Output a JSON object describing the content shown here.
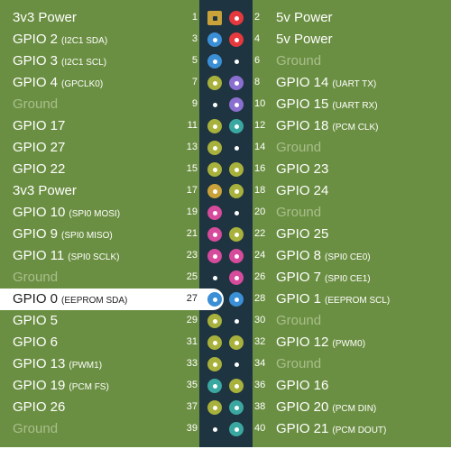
{
  "colors": {
    "board_green": "#6b8f42",
    "header_strip": "#1e3440",
    "power_3v3": "#c9a23a",
    "power_5v": "#e5393d",
    "ground": "#1e3440",
    "i2c": "#3b8fd6",
    "gpio": "#a8b13b",
    "uart": "#8b6fd0",
    "pcm": "#3aa8a0",
    "spi": "#d64b9b",
    "eeprom": "#3b8fd6"
  },
  "pins": [
    {
      "n": "1",
      "name": "3v3 Power",
      "sub": "",
      "type": "power_3v3"
    },
    {
      "n": "2",
      "name": "5v Power",
      "sub": "",
      "type": "power_5v"
    },
    {
      "n": "3",
      "name": "GPIO 2",
      "sub": "(I2C1 SDA)",
      "type": "i2c"
    },
    {
      "n": "4",
      "name": "5v Power",
      "sub": "",
      "type": "power_5v"
    },
    {
      "n": "5",
      "name": "GPIO 3",
      "sub": "(I2C1 SCL)",
      "type": "i2c"
    },
    {
      "n": "6",
      "name": "Ground",
      "sub": "",
      "type": "ground"
    },
    {
      "n": "7",
      "name": "GPIO 4",
      "sub": "(GPCLK0)",
      "type": "gpio"
    },
    {
      "n": "8",
      "name": "GPIO 14",
      "sub": "(UART TX)",
      "type": "uart"
    },
    {
      "n": "9",
      "name": "Ground",
      "sub": "",
      "type": "ground"
    },
    {
      "n": "10",
      "name": "GPIO 15",
      "sub": "(UART RX)",
      "type": "uart"
    },
    {
      "n": "11",
      "name": "GPIO 17",
      "sub": "",
      "type": "gpio"
    },
    {
      "n": "12",
      "name": "GPIO 18",
      "sub": "(PCM CLK)",
      "type": "pcm"
    },
    {
      "n": "13",
      "name": "GPIO 27",
      "sub": "",
      "type": "gpio"
    },
    {
      "n": "14",
      "name": "Ground",
      "sub": "",
      "type": "ground"
    },
    {
      "n": "15",
      "name": "GPIO 22",
      "sub": "",
      "type": "gpio"
    },
    {
      "n": "16",
      "name": "GPIO 23",
      "sub": "",
      "type": "gpio"
    },
    {
      "n": "17",
      "name": "3v3 Power",
      "sub": "",
      "type": "power_3v3"
    },
    {
      "n": "18",
      "name": "GPIO 24",
      "sub": "",
      "type": "gpio"
    },
    {
      "n": "19",
      "name": "GPIO 10",
      "sub": "(SPI0 MOSI)",
      "type": "spi"
    },
    {
      "n": "20",
      "name": "Ground",
      "sub": "",
      "type": "ground"
    },
    {
      "n": "21",
      "name": "GPIO 9",
      "sub": "(SPI0 MISO)",
      "type": "spi"
    },
    {
      "n": "22",
      "name": "GPIO 25",
      "sub": "",
      "type": "gpio"
    },
    {
      "n": "23",
      "name": "GPIO 11",
      "sub": "(SPI0 SCLK)",
      "type": "spi"
    },
    {
      "n": "24",
      "name": "GPIO 8",
      "sub": "(SPI0 CE0)",
      "type": "spi"
    },
    {
      "n": "25",
      "name": "Ground",
      "sub": "",
      "type": "ground"
    },
    {
      "n": "26",
      "name": "GPIO 7",
      "sub": "(SPI0 CE1)",
      "type": "spi"
    },
    {
      "n": "27",
      "name": "GPIO 0",
      "sub": "(EEPROM SDA)",
      "type": "eeprom",
      "highlight": true
    },
    {
      "n": "28",
      "name": "GPIO 1",
      "sub": "(EEPROM SCL)",
      "type": "eeprom"
    },
    {
      "n": "29",
      "name": "GPIO 5",
      "sub": "",
      "type": "gpio"
    },
    {
      "n": "30",
      "name": "Ground",
      "sub": "",
      "type": "ground"
    },
    {
      "n": "31",
      "name": "GPIO 6",
      "sub": "",
      "type": "gpio"
    },
    {
      "n": "32",
      "name": "GPIO 12",
      "sub": "(PWM0)",
      "type": "gpio"
    },
    {
      "n": "33",
      "name": "GPIO 13",
      "sub": "(PWM1)",
      "type": "gpio"
    },
    {
      "n": "34",
      "name": "Ground",
      "sub": "",
      "type": "ground"
    },
    {
      "n": "35",
      "name": "GPIO 19",
      "sub": "(PCM FS)",
      "type": "pcm"
    },
    {
      "n": "36",
      "name": "GPIO 16",
      "sub": "",
      "type": "gpio"
    },
    {
      "n": "37",
      "name": "GPIO 26",
      "sub": "",
      "type": "gpio"
    },
    {
      "n": "38",
      "name": "GPIO 20",
      "sub": "(PCM DIN)",
      "type": "pcm"
    },
    {
      "n": "39",
      "name": "Ground",
      "sub": "",
      "type": "ground"
    },
    {
      "n": "40",
      "name": "GPIO 21",
      "sub": "(PCM DOUT)",
      "type": "pcm"
    }
  ]
}
